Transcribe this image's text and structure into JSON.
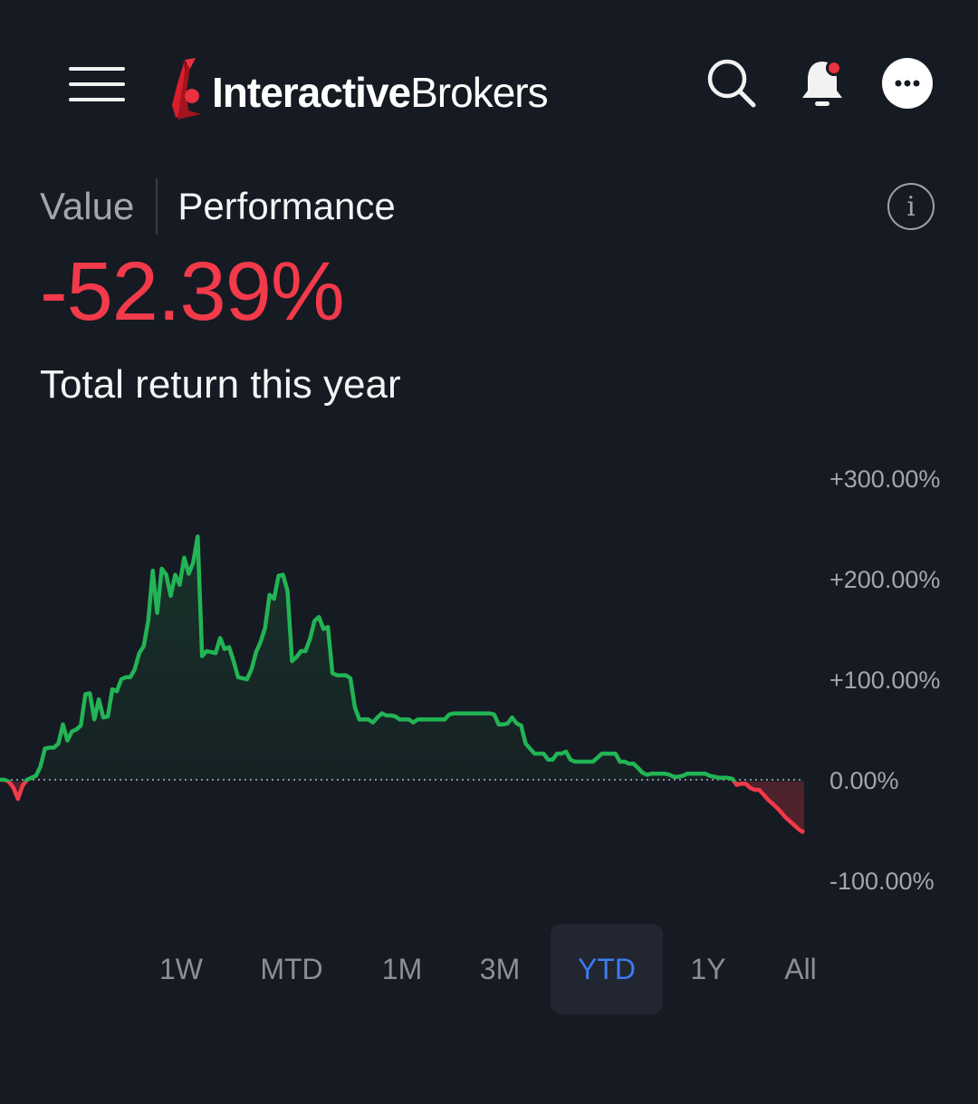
{
  "header": {
    "logo_bold": "Interactive",
    "logo_regular": "Brokers",
    "menu_icon": "hamburger-menu-icon",
    "search_icon": "search-icon",
    "bell_icon": "bell-notification-icon",
    "more_icon": "more-ellipsis-icon",
    "brand_color": "#d81e2c",
    "notification_dot_color": "#e8323f"
  },
  "tabs": {
    "value_label": "Value",
    "performance_label": "Performance",
    "active": "Performance",
    "info_icon": "info-icon",
    "info_glyph": "i"
  },
  "summary": {
    "return_value": "-52.39%",
    "return_label": "Total return this year",
    "negative_color": "#f23a4a"
  },
  "chart_data": {
    "type": "line",
    "y_ticks": [
      "+300.00%",
      "+200.00%",
      "+100.00%",
      "0.00%",
      "-100.00%"
    ],
    "y_tick_values": [
      300,
      200,
      100,
      0,
      -100
    ],
    "ylim": [
      -100,
      300
    ],
    "baseline": 0,
    "grid": false,
    "positive_color": "#22b455",
    "negative_color": "#f23a4a",
    "series": [
      {
        "values": [
          0,
          0,
          -2,
          -8,
          -19,
          -6,
          0,
          2,
          4,
          13,
          31,
          32,
          32,
          36,
          55,
          39,
          48,
          50,
          54,
          85,
          86,
          60,
          80,
          62,
          63,
          90,
          88,
          100,
          102,
          102,
          110,
          126,
          133,
          158,
          208,
          166,
          210,
          204,
          183,
          204,
          194,
          221,
          205,
          216,
          242,
          123,
          128,
          127,
          126,
          141,
          130,
          132,
          118,
          102,
          101,
          100,
          110,
          127,
          137,
          151,
          184,
          180,
          203,
          204,
          188,
          118,
          122,
          128,
          128,
          140,
          158,
          162,
          150,
          152,
          106,
          104,
          104,
          104,
          101,
          72,
          60,
          60,
          60,
          57,
          62,
          66,
          64,
          64,
          63,
          60,
          60,
          60,
          57,
          60,
          60,
          60,
          60,
          60,
          60,
          60,
          65,
          66,
          66,
          66,
          66,
          66,
          66,
          66,
          66,
          66,
          65,
          55,
          55,
          56,
          62,
          56,
          54,
          36,
          31,
          26,
          26,
          26,
          20,
          20,
          26,
          26,
          28,
          20,
          18,
          18,
          18,
          18,
          18,
          22,
          26,
          26,
          26,
          26,
          18,
          18,
          16,
          16,
          12,
          7,
          5,
          6,
          6,
          6,
          6,
          5,
          3,
          3,
          4,
          6,
          6,
          6,
          6,
          6,
          4,
          3,
          2,
          2,
          2,
          1,
          -5,
          -4,
          -4,
          -8,
          -10,
          -10,
          -15,
          -20,
          -24,
          -28,
          -33,
          -38,
          -42,
          -46,
          -50,
          -52.39
        ]
      }
    ]
  },
  "range": {
    "options": [
      "1W",
      "MTD",
      "1M",
      "3M",
      "YTD",
      "1Y",
      "All"
    ],
    "selected": "YTD",
    "selected_color": "#3b7cf4"
  }
}
